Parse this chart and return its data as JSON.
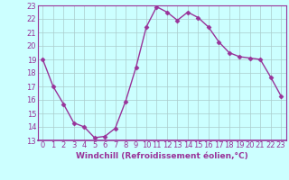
{
  "x": [
    0,
    1,
    2,
    3,
    4,
    5,
    6,
    7,
    8,
    9,
    10,
    11,
    12,
    13,
    14,
    15,
    16,
    17,
    18,
    19,
    20,
    21,
    22,
    23
  ],
  "y": [
    19,
    17,
    15.7,
    14.3,
    14.0,
    13.2,
    13.3,
    13.9,
    15.9,
    18.4,
    21.4,
    22.9,
    22.5,
    21.9,
    22.5,
    22.1,
    21.4,
    20.3,
    19.5,
    19.2,
    19.1,
    19.0,
    17.7,
    16.3
  ],
  "line_color": "#993399",
  "marker": "D",
  "marker_size": 2.5,
  "bg_color": "#ccffff",
  "grid_color": "#aacccc",
  "xlabel": "Windchill (Refroidissement éolien,°C)",
  "xlabel_color": "#993399",
  "tick_color": "#993399",
  "ylim": [
    13,
    23
  ],
  "xlim": [
    -0.5,
    23.5
  ],
  "yticks": [
    13,
    14,
    15,
    16,
    17,
    18,
    19,
    20,
    21,
    22,
    23
  ],
  "xticks": [
    0,
    1,
    2,
    3,
    4,
    5,
    6,
    7,
    8,
    9,
    10,
    11,
    12,
    13,
    14,
    15,
    16,
    17,
    18,
    19,
    20,
    21,
    22,
    23
  ],
  "line_width": 1.0,
  "tick_fontsize": 6.0,
  "xlabel_fontsize": 6.5
}
